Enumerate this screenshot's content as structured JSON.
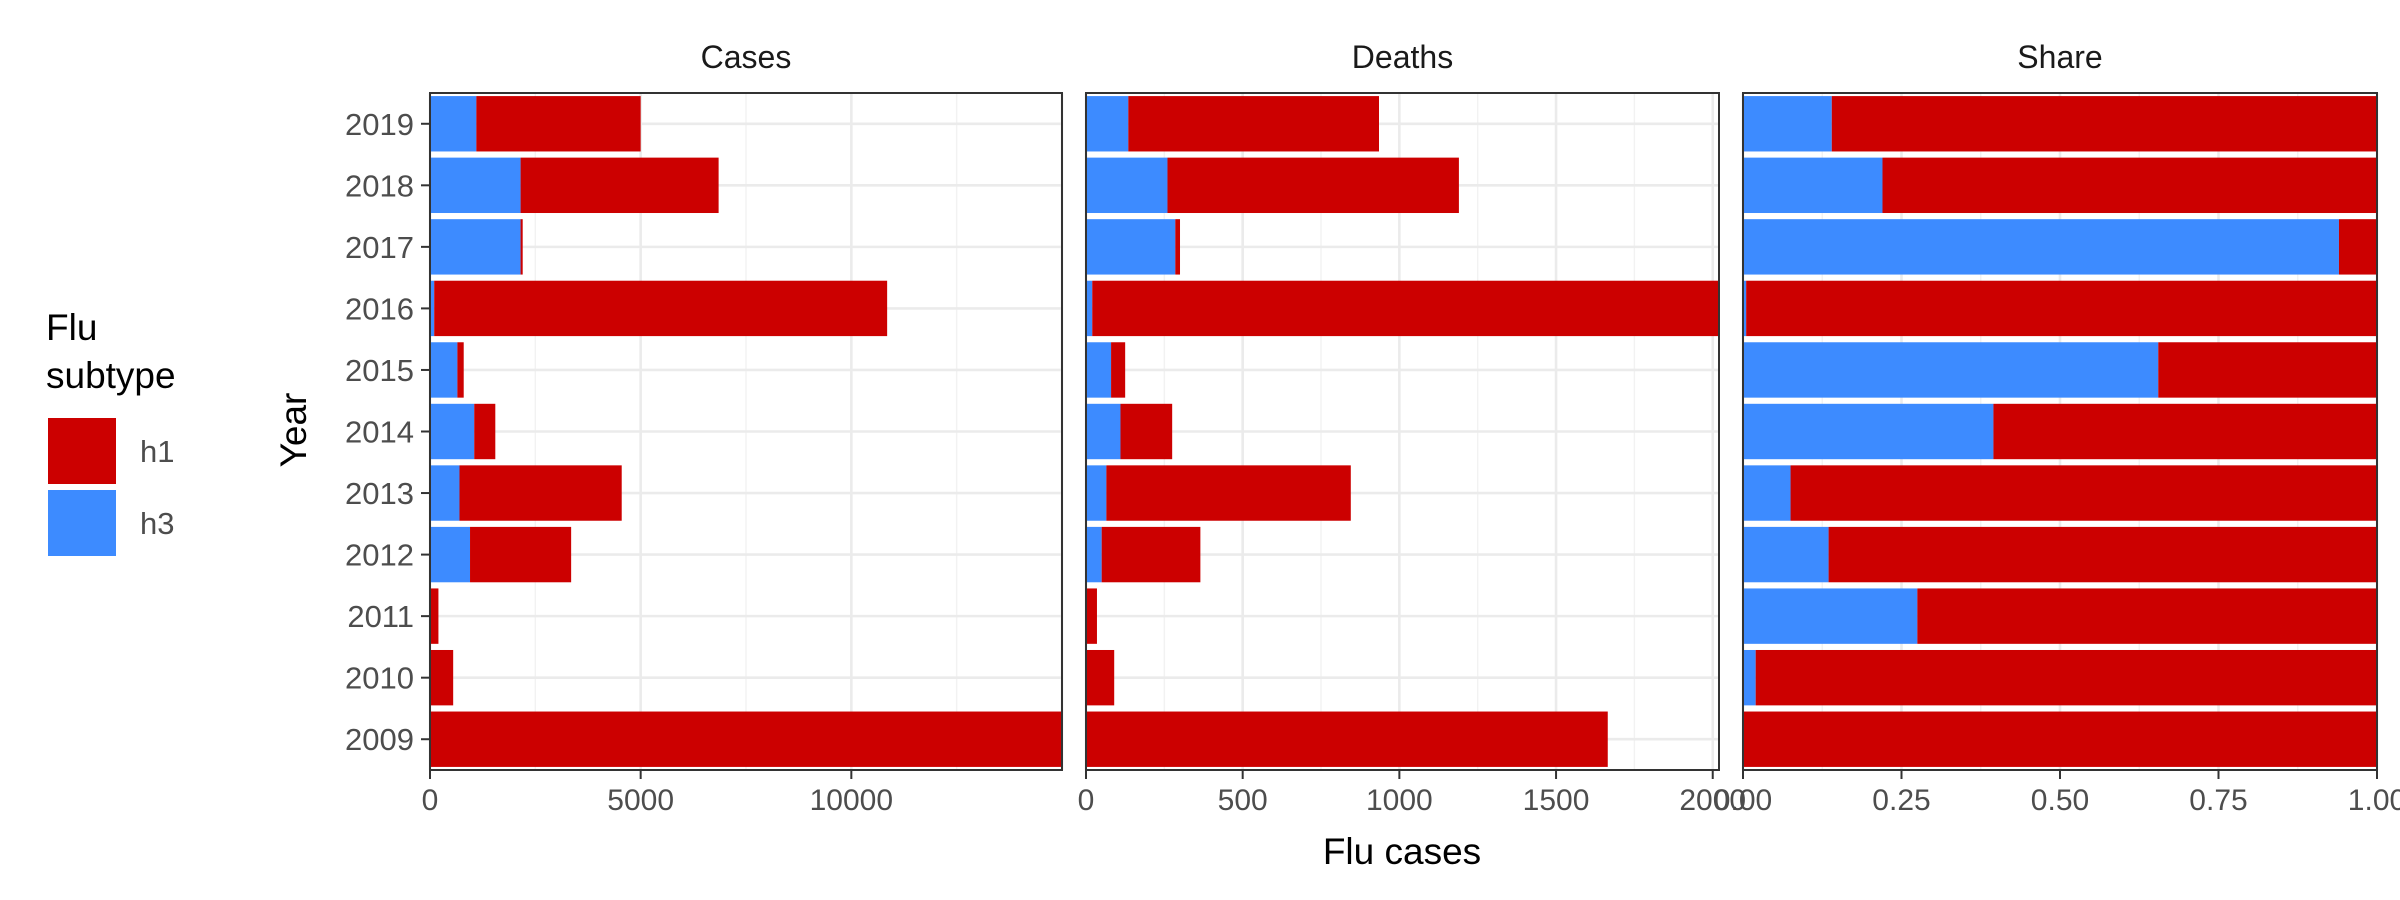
{
  "chart_data": {
    "type": "bar",
    "orientation": "horizontal",
    "stacked": true,
    "categories": [
      "2009",
      "2010",
      "2011",
      "2012",
      "2013",
      "2014",
      "2015",
      "2016",
      "2017",
      "2018",
      "2019"
    ],
    "xlabel": "Flu cases",
    "ylabel": "Year",
    "legend": {
      "title": "Flu\nsubtype",
      "position": "left",
      "entries": [
        "h1",
        "h3"
      ]
    },
    "colors": {
      "h1": "#cc0000",
      "h3": "#3d8bff"
    },
    "grid": true,
    "panels": [
      {
        "title": "Cases",
        "xlim": [
          0,
          15000
        ],
        "xticks": [
          "0",
          "5000",
          "10000"
        ],
        "series": [
          {
            "name": "h3",
            "values": [
              0,
              0,
              0,
              950,
              700,
              1050,
              650,
              100,
              2150,
              2150,
              1100
            ]
          },
          {
            "name": "h1",
            "values": [
              15000,
              550,
              200,
              2400,
              3850,
              500,
              150,
              10750,
              50,
              4700,
              3900
            ]
          }
        ]
      },
      {
        "title": "Deaths",
        "xlim": [
          0,
          2020
        ],
        "xticks": [
          "0",
          "500",
          "1000",
          "1500",
          "2000"
        ],
        "series": [
          {
            "name": "h3",
            "values": [
              0,
              0,
              0,
              50,
              65,
              110,
              80,
              20,
              285,
              260,
              135
            ]
          },
          {
            "name": "h1",
            "values": [
              1665,
              90,
              35,
              315,
              780,
              165,
              45,
              2000,
              15,
              930,
              800
            ]
          }
        ]
      },
      {
        "title": "Share",
        "xlim": [
          0,
          1
        ],
        "xticks": [
          "0.00",
          "0.25",
          "0.50",
          "0.75",
          "1.00"
        ],
        "series": [
          {
            "name": "h3",
            "values": [
              0,
              0.02,
              0.275,
              0.135,
              0.075,
              0.395,
              0.655,
              0.005,
              0.94,
              0.22,
              0.14
            ]
          },
          {
            "name": "h1",
            "values": [
              1,
              0.98,
              0.725,
              0.865,
              0.925,
              0.605,
              0.345,
              0.995,
              0.06,
              0.78,
              0.86
            ]
          }
        ]
      }
    ]
  }
}
